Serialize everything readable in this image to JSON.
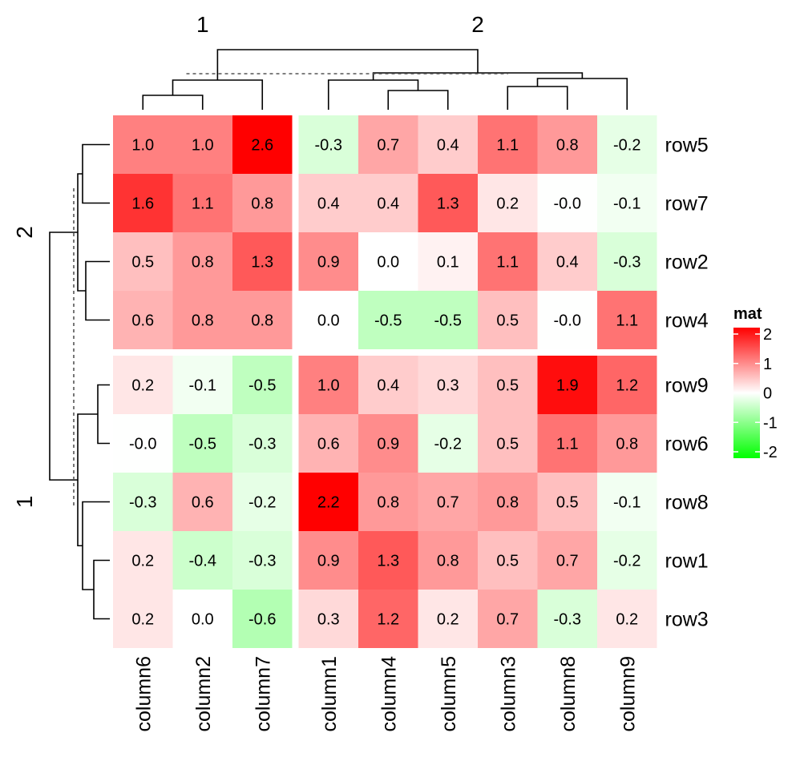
{
  "chart_data": {
    "type": "heatmap",
    "legend": {
      "title": "mat",
      "breaks": [
        2,
        1,
        0,
        -1,
        -2
      ],
      "tick_labels": [
        "2",
        "1",
        "0",
        "-1",
        "-2"
      ],
      "colors": {
        "high": "#ff0000",
        "mid": "#ffffff",
        "low": "#00ff00"
      },
      "range": [
        -2,
        2
      ],
      "placement": "right"
    },
    "column_splits": [
      {
        "label": "1",
        "columns": [
          "column6",
          "column2",
          "column7"
        ]
      },
      {
        "label": "2",
        "columns": [
          "column1",
          "column4",
          "column5",
          "column3",
          "column8",
          "column9"
        ]
      }
    ],
    "row_splits": [
      {
        "label": "2",
        "rows": [
          "row5",
          "row7",
          "row2",
          "row4"
        ]
      },
      {
        "label": "1",
        "rows": [
          "row9",
          "row6",
          "row8",
          "row1",
          "row3"
        ]
      }
    ],
    "columns": [
      "column6",
      "column2",
      "column7",
      "column1",
      "column4",
      "column5",
      "column3",
      "column8",
      "column9"
    ],
    "rows": [
      "row5",
      "row7",
      "row2",
      "row4",
      "row9",
      "row6",
      "row8",
      "row1",
      "row3"
    ],
    "values": [
      [
        1.0,
        1.0,
        2.6,
        -0.3,
        0.7,
        0.4,
        1.1,
        0.8,
        -0.2
      ],
      [
        1.6,
        1.1,
        0.8,
        0.4,
        0.4,
        1.3,
        0.2,
        -0.01,
        -0.1
      ],
      [
        0.5,
        0.8,
        1.3,
        0.9,
        0.0,
        0.1,
        1.1,
        0.4,
        -0.3
      ],
      [
        0.6,
        0.8,
        0.8,
        0.0,
        -0.5,
        -0.5,
        0.5,
        -0.01,
        1.1
      ],
      [
        0.2,
        -0.1,
        -0.5,
        1.0,
        0.4,
        0.3,
        0.5,
        1.9,
        1.2
      ],
      [
        -0.01,
        -0.5,
        -0.3,
        0.6,
        0.9,
        -0.2,
        0.5,
        1.1,
        0.8
      ],
      [
        -0.3,
        0.6,
        -0.2,
        2.2,
        0.8,
        0.7,
        0.8,
        0.5,
        -0.1
      ],
      [
        0.2,
        -0.4,
        -0.3,
        0.9,
        1.3,
        0.8,
        0.5,
        0.7,
        -0.2
      ],
      [
        0.2,
        0.0,
        -0.6,
        0.3,
        1.2,
        0.2,
        0.7,
        -0.3,
        0.2
      ]
    ],
    "value_labels": [
      [
        "1.0",
        "1.0",
        "2.6",
        "-0.3",
        "0.7",
        "0.4",
        "1.1",
        "0.8",
        "-0.2"
      ],
      [
        "1.6",
        "1.1",
        "0.8",
        "0.4",
        "0.4",
        "1.3",
        "0.2",
        "-0.0",
        "-0.1"
      ],
      [
        "0.5",
        "0.8",
        "1.3",
        "0.9",
        "0.0",
        "0.1",
        "1.1",
        "0.4",
        "-0.3"
      ],
      [
        "0.6",
        "0.8",
        "0.8",
        "0.0",
        "-0.5",
        "-0.5",
        "0.5",
        "-0.0",
        "1.1"
      ],
      [
        "0.2",
        "-0.1",
        "-0.5",
        "1.0",
        "0.4",
        "0.3",
        "0.5",
        "1.9",
        "1.2"
      ],
      [
        "-0.0",
        "-0.5",
        "-0.3",
        "0.6",
        "0.9",
        "-0.2",
        "0.5",
        "1.1",
        "0.8"
      ],
      [
        "-0.3",
        "0.6",
        "-0.2",
        "2.2",
        "0.8",
        "0.7",
        "0.8",
        "0.5",
        "-0.1"
      ],
      [
        "0.2",
        "-0.4",
        "-0.3",
        "0.9",
        "1.3",
        "0.8",
        "0.5",
        "0.7",
        "-0.2"
      ],
      [
        "0.2",
        "0.0",
        "-0.6",
        "0.3",
        "1.2",
        "0.2",
        "0.7",
        "-0.3",
        "0.2"
      ]
    ],
    "column_dendrogram": [
      {
        "merge": [
          "column6",
          "column2"
        ]
      },
      {
        "merge": [
          "(column6,column2)",
          "column7"
        ]
      },
      {
        "merge": [
          "column4",
          "column5"
        ]
      },
      {
        "merge": [
          "column1",
          "(column4,column5)"
        ]
      },
      {
        "merge": [
          "column3",
          "column8"
        ]
      },
      {
        "merge": [
          "(column3,column8)",
          "column9"
        ]
      },
      {
        "merge": [
          "(column1,column4,column5)",
          "(column3,column8,column9)"
        ]
      },
      {
        "merge": [
          "split1",
          "split2"
        ]
      }
    ],
    "row_dendrogram": [
      {
        "merge": [
          "row2",
          "row4"
        ]
      },
      {
        "merge": [
          "row5",
          "row7"
        ]
      },
      {
        "merge": [
          "(row5,row7)",
          "(row2,row4)"
        ]
      },
      {
        "merge": [
          "row9",
          "row6"
        ]
      },
      {
        "merge": [
          "row1",
          "row3"
        ]
      },
      {
        "merge": [
          "row8",
          "(row1,row3)"
        ]
      },
      {
        "merge": [
          "(row9,row6)",
          "(row8,row1,row3)"
        ]
      },
      {
        "merge": [
          "split2",
          "split1"
        ]
      }
    ]
  }
}
